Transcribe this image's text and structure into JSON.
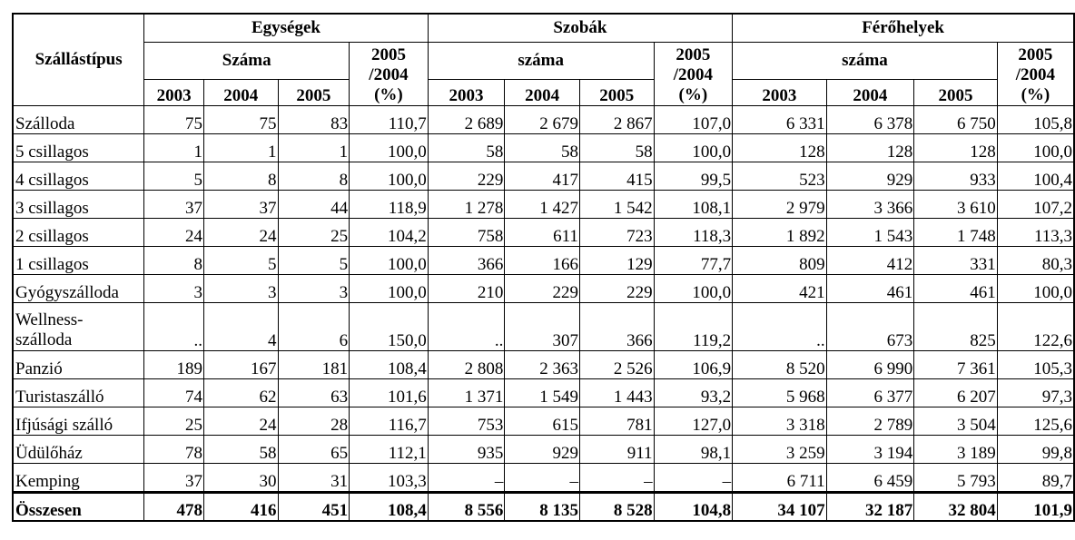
{
  "table": {
    "row_header": "Szállástípus",
    "groups": [
      {
        "name": "Egységek",
        "count_label": "Száma"
      },
      {
        "name": "Szobák",
        "count_label": "száma"
      },
      {
        "name": "Férőhelyek",
        "count_label": "száma"
      }
    ],
    "pct_label_line1": "2005",
    "pct_label_line2": "/2004",
    "pct_label_line3": "(%)",
    "years": [
      "2003",
      "2004",
      "2005"
    ],
    "rows": [
      {
        "label": "Szálloda",
        "values": [
          "75",
          "75",
          "83",
          "110,7",
          "2 689",
          "2 679",
          "2 867",
          "107,0",
          "6 331",
          "6 378",
          "6 750",
          "105,8"
        ]
      },
      {
        "label": "5 csillagos",
        "values": [
          "1",
          "1",
          "1",
          "100,0",
          "58",
          "58",
          "58",
          "100,0",
          "128",
          "128",
          "128",
          "100,0"
        ]
      },
      {
        "label": "4 csillagos",
        "values": [
          "5",
          "8",
          "8",
          "100,0",
          "229",
          "417",
          "415",
          "99,5",
          "523",
          "929",
          "933",
          "100,4"
        ]
      },
      {
        "label": "3 csillagos",
        "values": [
          "37",
          "37",
          "44",
          "118,9",
          "1 278",
          "1 427",
          "1 542",
          "108,1",
          "2 979",
          "3 366",
          "3 610",
          "107,2"
        ]
      },
      {
        "label": "2 csillagos",
        "values": [
          "24",
          "24",
          "25",
          "104,2",
          "758",
          "611",
          "723",
          "118,3",
          "1 892",
          "1 543",
          "1 748",
          "113,3"
        ]
      },
      {
        "label": "1 csillagos",
        "values": [
          "8",
          "5",
          "5",
          "100,0",
          "366",
          "166",
          "129",
          "77,7",
          "809",
          "412",
          "331",
          "80,3"
        ]
      },
      {
        "label": "Gyógyszálloda",
        "values": [
          "3",
          "3",
          "3",
          "100,0",
          "210",
          "229",
          "229",
          "100,0",
          "421",
          "461",
          "461",
          "100,0"
        ]
      },
      {
        "label": "Wellness-szálloda",
        "label_line1": "Wellness-",
        "label_line2": "szálloda",
        "values": [
          "..",
          "4",
          "6",
          "150,0",
          "..",
          "307",
          "366",
          "119,2",
          "..",
          "673",
          "825",
          "122,6"
        ]
      },
      {
        "label": "Panzió",
        "values": [
          "189",
          "167",
          "181",
          "108,4",
          "2 808",
          "2 363",
          "2 526",
          "106,9",
          "8 520",
          "6 990",
          "7 361",
          "105,3"
        ]
      },
      {
        "label": "Turistaszálló",
        "values": [
          "74",
          "62",
          "63",
          "101,6",
          "1 371",
          "1 549",
          "1 443",
          "93,2",
          "5 968",
          "6 377",
          "6 207",
          "97,3"
        ]
      },
      {
        "label": "Ifjúsági szálló",
        "values": [
          "25",
          "24",
          "28",
          "116,7",
          "753",
          "615",
          "781",
          "127,0",
          "3 318",
          "2 789",
          "3 504",
          "125,6"
        ]
      },
      {
        "label": "Üdülőház",
        "values": [
          "78",
          "58",
          "65",
          "112,1",
          "935",
          "929",
          "911",
          "98,1",
          "3 259",
          "3 194",
          "3 189",
          "99,8"
        ]
      },
      {
        "label": "Kemping",
        "values": [
          "37",
          "30",
          "31",
          "103,3",
          "–",
          "–",
          "–",
          "–",
          "6 711",
          "6 459",
          "5 793",
          "89,7"
        ]
      }
    ],
    "total": {
      "label": "Összesen",
      "values": [
        "478",
        "416",
        "451",
        "108,4",
        "8 556",
        "8 135",
        "8 528",
        "104,8",
        "34 107",
        "32 187",
        "32 804",
        "101,9"
      ]
    }
  }
}
